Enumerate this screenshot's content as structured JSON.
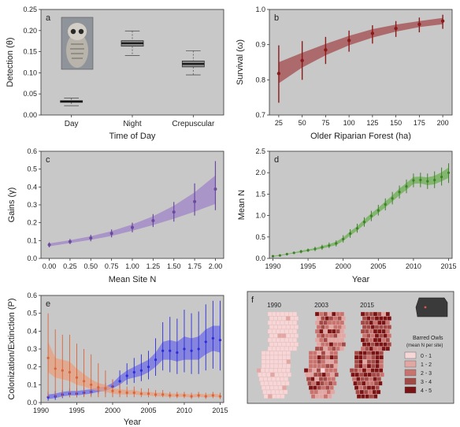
{
  "chart_data": [
    {
      "id": "a",
      "type": "box",
      "panel_label": "a",
      "xlabel": "Time of Day",
      "ylabel": "Detection (θ)",
      "ylim": [
        0,
        0.25
      ],
      "yticks": [
        0.0,
        0.05,
        0.1,
        0.15,
        0.2,
        0.25
      ],
      "categories": [
        "Day",
        "Night",
        "Crepuscular"
      ],
      "boxes": [
        {
          "category": "Day",
          "min": 0.022,
          "q1": 0.03,
          "median": 0.032,
          "q3": 0.034,
          "max": 0.04
        },
        {
          "category": "Night",
          "min": 0.141,
          "q1": 0.163,
          "median": 0.17,
          "q3": 0.176,
          "max": 0.199
        },
        {
          "category": "Crepuscular",
          "min": 0.095,
          "q1": 0.114,
          "median": 0.121,
          "q3": 0.128,
          "max": 0.152
        }
      ],
      "inset_image": "barred-owl-photo"
    },
    {
      "id": "b",
      "type": "line",
      "panel_label": "b",
      "xlabel": "Older Riparian Forest (ha)",
      "ylabel": "Survival (ω)",
      "ylim": [
        0.7,
        1.0
      ],
      "xlim": [
        15,
        210
      ],
      "yticks": [
        0.7,
        0.8,
        0.9,
        1.0
      ],
      "xticks": [
        25,
        50,
        75,
        100,
        125,
        150,
        175,
        200
      ],
      "points": {
        "x": [
          25,
          50,
          75,
          100,
          125,
          150,
          175,
          200
        ],
        "y": [
          0.818,
          0.855,
          0.885,
          0.912,
          0.932,
          0.946,
          0.958,
          0.967
        ],
        "lo": [
          0.735,
          0.8,
          0.845,
          0.88,
          0.903,
          0.922,
          0.935,
          0.945
        ],
        "hi": [
          0.898,
          0.91,
          0.922,
          0.94,
          0.955,
          0.967,
          0.977,
          0.985
        ]
      },
      "band": {
        "x": [
          25,
          50,
          75,
          100,
          125,
          150,
          175,
          200
        ],
        "lo": [
          0.79,
          0.835,
          0.87,
          0.898,
          0.92,
          0.937,
          0.95,
          0.958
        ],
        "hi": [
          0.85,
          0.877,
          0.902,
          0.925,
          0.944,
          0.957,
          0.967,
          0.976
        ]
      },
      "color": "#8b1a1a",
      "band_color": "#a8595c"
    },
    {
      "id": "c",
      "type": "line",
      "panel_label": "c",
      "xlabel": "Mean Site N",
      "ylabel": "Gains (γ)",
      "ylim": [
        0,
        0.6
      ],
      "xlim": [
        -0.1,
        2.1
      ],
      "yticks": [
        0.0,
        0.1,
        0.2,
        0.3,
        0.4,
        0.5,
        0.6
      ],
      "xticks": [
        0.0,
        0.25,
        0.5,
        0.75,
        1.0,
        1.25,
        1.5,
        1.75,
        2.0
      ],
      "points": {
        "x": [
          0,
          0.25,
          0.5,
          0.75,
          1.0,
          1.25,
          1.5,
          1.75,
          2.0
        ],
        "y": [
          0.076,
          0.094,
          0.114,
          0.14,
          0.173,
          0.212,
          0.26,
          0.318,
          0.388
        ],
        "lo": [
          0.062,
          0.08,
          0.096,
          0.118,
          0.146,
          0.176,
          0.206,
          0.24,
          0.27
        ],
        "hi": [
          0.09,
          0.109,
          0.132,
          0.162,
          0.2,
          0.248,
          0.316,
          0.42,
          0.545
        ]
      },
      "band": {
        "x": [
          0,
          0.25,
          0.5,
          0.75,
          1.0,
          1.25,
          1.5,
          1.75,
          2.0
        ],
        "lo": [
          0.068,
          0.086,
          0.104,
          0.126,
          0.155,
          0.187,
          0.222,
          0.262,
          0.305
        ],
        "hi": [
          0.084,
          0.102,
          0.124,
          0.153,
          0.19,
          0.236,
          0.295,
          0.37,
          0.465
        ]
      },
      "color": "#6a4a9c",
      "band_color": "#a58cc8"
    },
    {
      "id": "d",
      "type": "line",
      "panel_label": "d",
      "xlabel": "Year",
      "ylabel": "Mean N",
      "ylim": [
        0,
        2.5
      ],
      "xlim": [
        1989.5,
        2015.5
      ],
      "yticks": [
        0.0,
        0.5,
        1.0,
        1.5,
        2.0,
        2.5
      ],
      "xticks": [
        1990,
        1995,
        2000,
        2005,
        2010,
        2015
      ],
      "points": {
        "x": [
          1990,
          1991,
          1992,
          1993,
          1994,
          1995,
          1996,
          1997,
          1998,
          1999,
          2000,
          2001,
          2002,
          2003,
          2004,
          2005,
          2006,
          2007,
          2008,
          2009,
          2010,
          2011,
          2012,
          2013,
          2014,
          2015
        ],
        "y": [
          0.05,
          0.07,
          0.1,
          0.13,
          0.16,
          0.19,
          0.22,
          0.26,
          0.3,
          0.35,
          0.45,
          0.58,
          0.7,
          0.85,
          0.99,
          1.12,
          1.26,
          1.4,
          1.55,
          1.68,
          1.82,
          1.83,
          1.8,
          1.83,
          1.9,
          2.0
        ],
        "lo": [
          0.03,
          0.05,
          0.07,
          0.1,
          0.12,
          0.15,
          0.17,
          0.2,
          0.24,
          0.28,
          0.37,
          0.48,
          0.6,
          0.74,
          0.87,
          1.0,
          1.12,
          1.26,
          1.4,
          1.52,
          1.66,
          1.66,
          1.62,
          1.64,
          1.7,
          1.76
        ],
        "hi": [
          0.07,
          0.09,
          0.13,
          0.16,
          0.2,
          0.23,
          0.27,
          0.32,
          0.37,
          0.42,
          0.54,
          0.68,
          0.81,
          0.96,
          1.11,
          1.25,
          1.4,
          1.55,
          1.7,
          1.84,
          1.98,
          2.0,
          1.98,
          2.03,
          2.12,
          2.22
        ]
      },
      "band": {
        "x": [
          1990,
          1991,
          1992,
          1993,
          1994,
          1995,
          1996,
          1997,
          1998,
          1999,
          2000,
          2001,
          2002,
          2003,
          2004,
          2005,
          2006,
          2007,
          2008,
          2009,
          2010,
          2011,
          2012,
          2013,
          2014,
          2015
        ],
        "lo": [
          0.04,
          0.06,
          0.09,
          0.12,
          0.14,
          0.17,
          0.2,
          0.23,
          0.27,
          0.31,
          0.41,
          0.53,
          0.65,
          0.79,
          0.93,
          1.06,
          1.19,
          1.33,
          1.47,
          1.6,
          1.74,
          1.75,
          1.71,
          1.73,
          1.8,
          1.88
        ],
        "hi": [
          0.06,
          0.08,
          0.11,
          0.14,
          0.18,
          0.21,
          0.24,
          0.29,
          0.33,
          0.39,
          0.49,
          0.63,
          0.75,
          0.91,
          1.05,
          1.18,
          1.33,
          1.47,
          1.63,
          1.76,
          1.9,
          1.91,
          1.89,
          1.93,
          2.01,
          2.12
        ]
      },
      "color": "#3f7f2a",
      "band_color": "#7bb565"
    },
    {
      "id": "e",
      "type": "line",
      "panel_label": "e",
      "xlabel": "Year",
      "ylabel": "Colonization/Extinction (P)",
      "ylim": [
        0,
        0.6
      ],
      "xlim": [
        1990,
        2015.5
      ],
      "yticks": [
        0.0,
        0.1,
        0.2,
        0.3,
        0.4,
        0.5,
        0.6
      ],
      "xticks": [
        1990,
        1995,
        2000,
        2005,
        2010,
        2015
      ],
      "series": [
        {
          "name": "",
          "color": "#2b2bd9",
          "band_color": "#6f6fe8",
          "x": [
            1991,
            1992,
            1993,
            1994,
            1995,
            1996,
            1997,
            1998,
            1999,
            2000,
            2001,
            2002,
            2003,
            2004,
            2005,
            2006,
            2007,
            2008,
            2009,
            2010,
            2011,
            2012,
            2013,
            2014,
            2015
          ],
          "y": [
            0.03,
            0.035,
            0.045,
            0.05,
            0.05,
            0.055,
            0.06,
            0.07,
            0.075,
            0.09,
            0.12,
            0.15,
            0.17,
            0.18,
            0.2,
            0.24,
            0.29,
            0.29,
            0.28,
            0.3,
            0.29,
            0.3,
            0.34,
            0.36,
            0.35
          ],
          "lo": [
            0.01,
            0.015,
            0.025,
            0.03,
            0.03,
            0.035,
            0.04,
            0.05,
            0.05,
            0.06,
            0.08,
            0.1,
            0.11,
            0.12,
            0.13,
            0.15,
            0.18,
            0.17,
            0.16,
            0.17,
            0.16,
            0.16,
            0.18,
            0.19,
            0.18
          ],
          "hi": [
            0.06,
            0.065,
            0.07,
            0.08,
            0.08,
            0.085,
            0.09,
            0.1,
            0.11,
            0.13,
            0.18,
            0.22,
            0.25,
            0.27,
            0.29,
            0.36,
            0.45,
            0.48,
            0.47,
            0.52,
            0.5,
            0.51,
            0.55,
            0.57,
            0.57
          ],
          "band_lo": [
            0.02,
            0.025,
            0.035,
            0.04,
            0.04,
            0.045,
            0.05,
            0.06,
            0.065,
            0.08,
            0.1,
            0.13,
            0.14,
            0.15,
            0.17,
            0.2,
            0.24,
            0.24,
            0.23,
            0.24,
            0.24,
            0.24,
            0.27,
            0.29,
            0.28
          ],
          "band_hi": [
            0.045,
            0.05,
            0.06,
            0.065,
            0.065,
            0.07,
            0.075,
            0.085,
            0.09,
            0.11,
            0.15,
            0.18,
            0.2,
            0.22,
            0.24,
            0.28,
            0.34,
            0.35,
            0.34,
            0.37,
            0.36,
            0.37,
            0.41,
            0.43,
            0.43
          ]
        },
        {
          "name": "",
          "color": "#d9643a",
          "band_color": "#e9a07e",
          "x": [
            1991,
            1992,
            1993,
            1994,
            1995,
            1996,
            1997,
            1998,
            1999,
            2000,
            2001,
            2002,
            2003,
            2004,
            2005,
            2006,
            2007,
            2008,
            2009,
            2010,
            2011,
            2012,
            2013,
            2014,
            2015
          ],
          "y": [
            0.25,
            0.19,
            0.18,
            0.17,
            0.14,
            0.12,
            0.1,
            0.085,
            0.08,
            0.065,
            0.06,
            0.055,
            0.055,
            0.05,
            0.05,
            0.045,
            0.045,
            0.04,
            0.04,
            0.04,
            0.035,
            0.04,
            0.035,
            0.04,
            0.035
          ],
          "lo": [
            0.03,
            0.03,
            0.03,
            0.03,
            0.03,
            0.03,
            0.03,
            0.03,
            0.03,
            0.03,
            0.03,
            0.03,
            0.03,
            0.03,
            0.03,
            0.03,
            0.03,
            0.025,
            0.025,
            0.025,
            0.02,
            0.025,
            0.02,
            0.025,
            0.02
          ],
          "hi": [
            0.5,
            0.41,
            0.38,
            0.38,
            0.33,
            0.3,
            0.27,
            0.22,
            0.18,
            0.13,
            0.11,
            0.09,
            0.09,
            0.08,
            0.08,
            0.07,
            0.07,
            0.06,
            0.06,
            0.06,
            0.055,
            0.06,
            0.055,
            0.06,
            0.055
          ],
          "band_lo": [
            0.17,
            0.14,
            0.13,
            0.12,
            0.1,
            0.09,
            0.075,
            0.065,
            0.06,
            0.05,
            0.045,
            0.045,
            0.045,
            0.04,
            0.04,
            0.035,
            0.035,
            0.032,
            0.032,
            0.032,
            0.028,
            0.032,
            0.028,
            0.032,
            0.028
          ],
          "band_hi": [
            0.34,
            0.25,
            0.24,
            0.23,
            0.19,
            0.16,
            0.13,
            0.11,
            0.1,
            0.08,
            0.075,
            0.07,
            0.07,
            0.06,
            0.06,
            0.055,
            0.055,
            0.05,
            0.05,
            0.05,
            0.045,
            0.05,
            0.045,
            0.05,
            0.045
          ]
        }
      ]
    },
    {
      "id": "f",
      "type": "map",
      "panel_label": "f",
      "maps": [
        {
          "year": "1990",
          "shade": 0.15
        },
        {
          "year": "2003",
          "shade": 0.45
        },
        {
          "year": "2015",
          "shade": 0.75
        }
      ],
      "legend": {
        "title_line1": "Barred Owls",
        "title_line2": "(mean N per site)",
        "classes": [
          {
            "label": "0 - 1",
            "color": "#f6d6d6"
          },
          {
            "label": "1 - 2",
            "color": "#e2a7a3"
          },
          {
            "label": "2 - 3",
            "color": "#c8736e"
          },
          {
            "label": "3 - 4",
            "color": "#a24a46"
          },
          {
            "label": "4 - 5",
            "color": "#7a1414"
          }
        ]
      },
      "inset_map": "oregon-outline"
    }
  ],
  "colors": {
    "panel_bg": "#c8c8c8",
    "axis": "#333333",
    "text": "#222222"
  }
}
